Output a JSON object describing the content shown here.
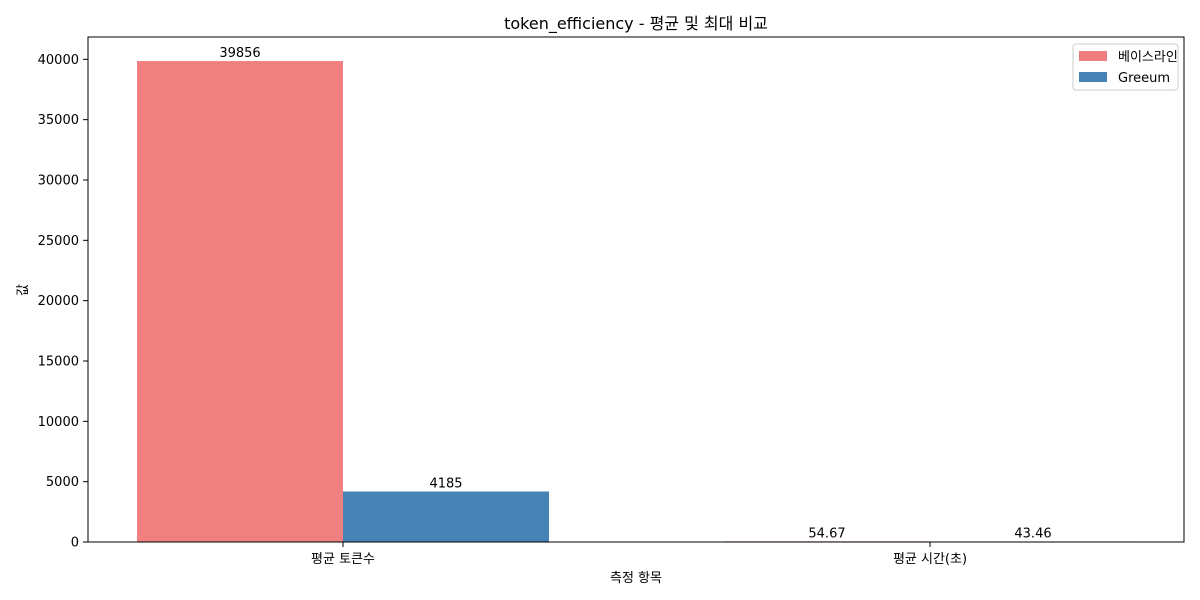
{
  "chart_data": {
    "type": "bar",
    "title": "token_efficiency - 평균 및 최대 비교",
    "xlabel": "측정 항목",
    "ylabel": "값",
    "categories": [
      "평균 토큰수",
      "평균 시간(초)"
    ],
    "series": [
      {
        "name": "베이스라인",
        "color": "#f08080",
        "values": [
          39856,
          54.67
        ],
        "labels": [
          "39856",
          "54.67"
        ]
      },
      {
        "name": "Greeum",
        "color": "#4682b4",
        "values": [
          4185,
          43.46
        ],
        "labels": [
          "4185",
          "43.46"
        ]
      }
    ],
    "ylim": [
      0,
      41849
    ],
    "yticks": [
      0,
      5000,
      10000,
      15000,
      20000,
      25000,
      30000,
      35000,
      40000
    ],
    "legend": "top-right",
    "grid": false
  }
}
